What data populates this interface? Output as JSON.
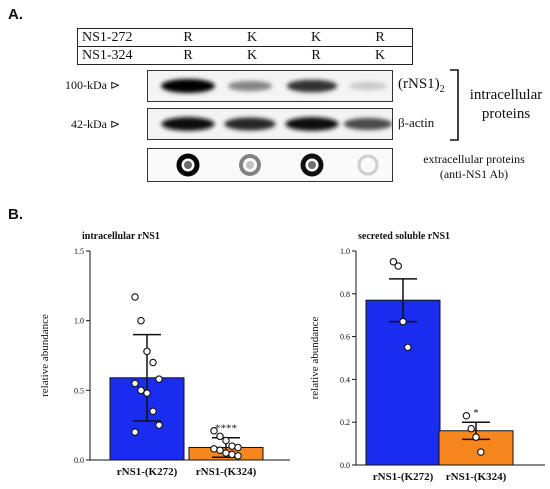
{
  "panel_a": {
    "label": "A.",
    "genotype_rows": [
      {
        "name": "NS1-272",
        "values": [
          "R",
          "K",
          "K",
          "R"
        ]
      },
      {
        "name": "NS1-324",
        "values": [
          "R",
          "K",
          "R",
          "K"
        ]
      }
    ],
    "blots": [
      {
        "marker": "100-kDa ⊳",
        "target": "(rNS1)",
        "target_sub": "2",
        "intensities": [
          1.0,
          0.45,
          0.8,
          0.15
        ]
      },
      {
        "marker": "42-kDa ⊳",
        "target": "β-actin",
        "intensities": [
          0.95,
          0.85,
          0.95,
          0.7
        ]
      }
    ],
    "dots": {
      "intensities": [
        1.0,
        0.45,
        0.95,
        0.1
      ],
      "label_line1": "extracellular proteins",
      "label_line2": "(anti-NS1 Ab)"
    },
    "bracket_label_line1": "intracellular",
    "bracket_label_line2": "proteins"
  },
  "panel_b": {
    "label": "B.",
    "colors": {
      "blue": "#1a2cf0",
      "orange": "#f7861e"
    }
  },
  "chart_data": [
    {
      "type": "bar",
      "title": "intracellular rNS1",
      "ylabel": "relative abundance",
      "categories": [
        "rNS1-(K272)",
        "rNS1-(K324)"
      ],
      "values": [
        0.59,
        0.09
      ],
      "error": [
        0.31,
        0.07
      ],
      "ylim": [
        0,
        1.5
      ],
      "yticks": [
        "0.0",
        "0.5",
        "1.0",
        "1.5"
      ],
      "significance": [
        "",
        "****"
      ],
      "points": [
        [
          1.17,
          1.0,
          0.78,
          0.7,
          0.58,
          0.55,
          0.5,
          0.48,
          0.35,
          0.25,
          0.2
        ],
        [
          0.21,
          0.17,
          0.14,
          0.1,
          0.09,
          0.08,
          0.07,
          0.05,
          0.04,
          0.03
        ]
      ]
    },
    {
      "type": "bar",
      "title": "secreted soluble rNS1",
      "ylabel": "relative abundance",
      "categories": [
        "rNS1-(K272)",
        "rNS1-(K324)"
      ],
      "values": [
        0.77,
        0.16
      ],
      "error": [
        0.1,
        0.04
      ],
      "ylim": [
        0,
        1.0
      ],
      "yticks": [
        "0.0",
        "0.2",
        "0.4",
        "0.6",
        "0.8",
        "1.0"
      ],
      "significance": [
        "",
        "*"
      ],
      "points": [
        [
          0.95,
          0.93,
          0.67,
          0.55
        ],
        [
          0.23,
          0.17,
          0.13,
          0.06
        ]
      ]
    }
  ]
}
